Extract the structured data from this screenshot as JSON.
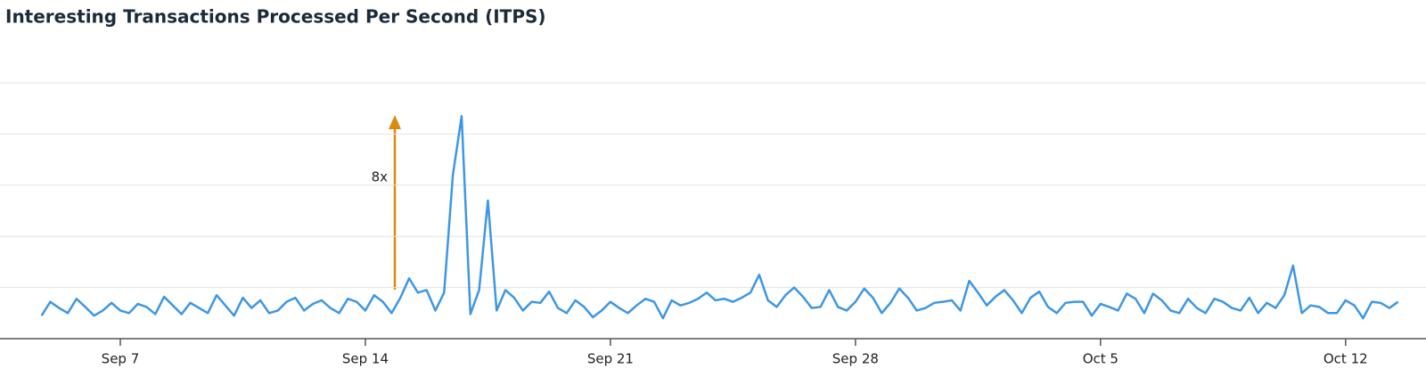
{
  "chart_data": {
    "type": "line",
    "title": "Interesting Transactions Processed Per Second (ITPS)",
    "annotation": "8x",
    "categories": [
      null,
      null,
      null,
      null,
      null,
      null,
      null,
      null,
      null,
      "Sep 7",
      null,
      null,
      null,
      null,
      null,
      null,
      null,
      null,
      null,
      null,
      null,
      null,
      null,
      null,
      null,
      null,
      null,
      null,
      null,
      null,
      null,
      null,
      null,
      null,
      null,
      null,
      null,
      "Sep 14",
      null,
      null,
      null,
      null,
      null,
      null,
      null,
      null,
      null,
      null,
      null,
      null,
      null,
      null,
      null,
      null,
      null,
      null,
      null,
      null,
      null,
      null,
      null,
      null,
      null,
      null,
      null,
      "Sep 21",
      null,
      null,
      null,
      null,
      null,
      null,
      null,
      null,
      null,
      null,
      null,
      null,
      null,
      null,
      null,
      null,
      null,
      null,
      null,
      null,
      null,
      null,
      null,
      null,
      null,
      null,
      null,
      "Sep 28",
      null,
      null,
      null,
      null,
      null,
      null,
      null,
      null,
      null,
      null,
      null,
      null,
      null,
      null,
      null,
      null,
      null,
      null,
      null,
      null,
      null,
      null,
      null,
      null,
      null,
      null,
      null,
      "Oct 5",
      null,
      null,
      null,
      null,
      null,
      null,
      null,
      null,
      null,
      null,
      null,
      null,
      null,
      null,
      null,
      null,
      null,
      null,
      null,
      null,
      null,
      null,
      null,
      null,
      null,
      null,
      null,
      "Oct 12",
      null,
      null,
      null,
      null,
      null,
      null
    ],
    "series": [
      {
        "color": "#3d97e3",
        "values": [
          0.45,
          0.72,
          0.6,
          0.5,
          0.78,
          0.62,
          0.45,
          0.55,
          0.7,
          0.55,
          0.5,
          0.68,
          0.62,
          0.48,
          0.82,
          0.65,
          0.48,
          0.7,
          0.6,
          0.5,
          0.85,
          0.65,
          0.45,
          0.8,
          0.6,
          0.75,
          0.5,
          0.55,
          0.72,
          0.8,
          0.55,
          0.68,
          0.75,
          0.6,
          0.5,
          0.78,
          0.72,
          0.55,
          0.85,
          0.72,
          0.5,
          0.8,
          1.18,
          0.9,
          0.95,
          0.55,
          0.9,
          3.2,
          4.35,
          0.48,
          0.95,
          2.7,
          0.55,
          0.95,
          0.8,
          0.55,
          0.72,
          0.7,
          0.92,
          0.6,
          0.5,
          0.75,
          0.62,
          0.42,
          0.55,
          0.72,
          0.6,
          0.5,
          0.65,
          0.78,
          0.72,
          0.4,
          0.75,
          0.65,
          0.7,
          0.78,
          0.9,
          0.75,
          0.78,
          0.72,
          0.8,
          0.9,
          1.25,
          0.75,
          0.62,
          0.85,
          1.0,
          0.82,
          0.6,
          0.62,
          0.95,
          0.62,
          0.55,
          0.72,
          0.98,
          0.8,
          0.5,
          0.7,
          0.98,
          0.8,
          0.55,
          0.6,
          0.7,
          0.72,
          0.75,
          0.55,
          1.13,
          0.9,
          0.65,
          0.82,
          0.95,
          0.75,
          0.5,
          0.8,
          0.92,
          0.62,
          0.5,
          0.7,
          0.72,
          0.72,
          0.45,
          0.68,
          0.62,
          0.55,
          0.88,
          0.78,
          0.5,
          0.88,
          0.75,
          0.55,
          0.5,
          0.78,
          0.6,
          0.5,
          0.78,
          0.72,
          0.6,
          0.55,
          0.8,
          0.5,
          0.7,
          0.6,
          0.85,
          1.43,
          0.5,
          0.65,
          0.62,
          0.5,
          0.5,
          0.75,
          0.65,
          0.4,
          0.72,
          0.7,
          0.6,
          0.72
        ]
      }
    ],
    "ylim": [
      0,
      5
    ],
    "yticks": [
      0,
      1,
      2,
      3,
      4,
      5
    ],
    "grid": true
  }
}
